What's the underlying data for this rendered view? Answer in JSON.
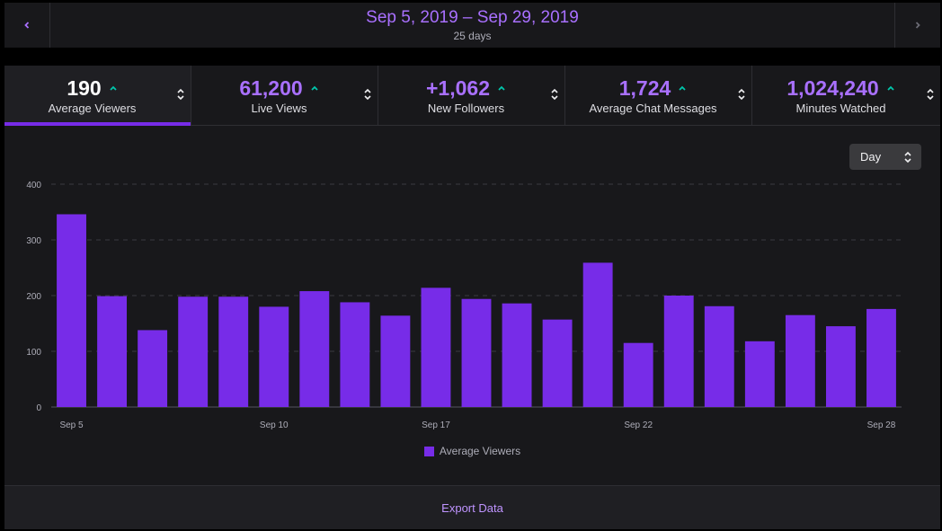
{
  "header": {
    "date_range": "Sep 5, 2019 – Sep 29, 2019",
    "days": "25 days"
  },
  "stats": [
    {
      "value": "190",
      "label": "Average Viewers",
      "active": true
    },
    {
      "value": "61,200",
      "label": "Live Views",
      "active": false
    },
    {
      "value": "+1,062",
      "label": "New Followers",
      "active": false
    },
    {
      "value": "1,724",
      "label": "Average Chat Messages",
      "active": false
    },
    {
      "value": "1,024,240",
      "label": "Minutes Watched",
      "active": false
    }
  ],
  "granularity": "Day",
  "export_label": "Export Data",
  "colors": {
    "accent": "#772ce8",
    "trend_up": "#00c7ac"
  },
  "chart_data": {
    "type": "bar",
    "title": "",
    "xlabel": "",
    "ylabel": "",
    "ylim": [
      0,
      400
    ],
    "yticks": [
      0,
      100,
      200,
      300,
      400
    ],
    "categories": [
      "Sep 5",
      "Sep 6",
      "Sep 7",
      "Sep 8",
      "Sep 9",
      "Sep 10",
      "Sep 11",
      "Sep 12",
      "Sep 13",
      "Sep 17",
      "Sep 18",
      "Sep 19",
      "Sep 20",
      "Sep 21",
      "Sep 22",
      "Sep 23",
      "Sep 24",
      "Sep 25",
      "Sep 26",
      "Sep 27",
      "Sep 28"
    ],
    "xtick_labels": [
      "Sep 5",
      "Sep 10",
      "Sep 17",
      "Sep 22",
      "Sep 28"
    ],
    "series": [
      {
        "name": "Average Viewers",
        "values": [
          346,
          199,
          138,
          198,
          198,
          180,
          208,
          188,
          164,
          214,
          194,
          186,
          157,
          259,
          115,
          200,
          181,
          118,
          165,
          145,
          176
        ]
      }
    ],
    "legend": "bottom-center"
  }
}
